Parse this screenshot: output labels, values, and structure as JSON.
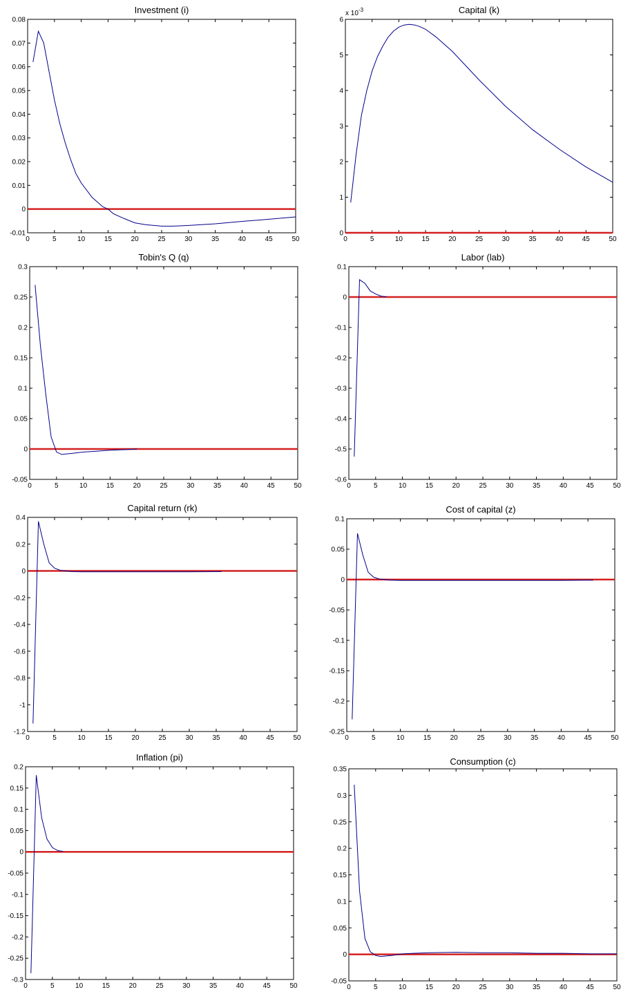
{
  "colors": {
    "series": "#00008b",
    "reference": "#d42020",
    "axes": "#000000",
    "background": "#ffffff"
  },
  "chart_data": [
    {
      "type": "line",
      "title": "Investment (i)",
      "xlim": [
        0,
        50
      ],
      "ylim": [
        -0.01,
        0.08
      ],
      "xticks": [
        "0",
        "5",
        "10",
        "15",
        "20",
        "25",
        "30",
        "35",
        "40",
        "45",
        "50"
      ],
      "yticks": [
        "-0.01",
        "0",
        "0.01",
        "0.02",
        "0.03",
        "0.04",
        "0.05",
        "0.06",
        "0.07",
        "0.08"
      ],
      "series": [
        {
          "x": [
            1,
            2,
            3,
            4,
            5,
            6,
            7,
            8,
            9,
            10,
            12,
            14,
            15,
            16,
            18,
            20,
            22,
            25,
            27,
            30,
            35,
            40,
            45,
            50
          ],
          "y": [
            0.062,
            0.075,
            0.07,
            0.058,
            0.046,
            0.036,
            0.028,
            0.021,
            0.015,
            0.011,
            0.005,
            0.001,
            0.0,
            -0.002,
            -0.004,
            -0.0058,
            -0.0066,
            -0.0072,
            -0.0072,
            -0.0069,
            -0.0062,
            -0.0052,
            -0.0043,
            -0.0033
          ]
        }
      ],
      "reference_line": 0
    },
    {
      "type": "line",
      "title": "Capital (k)",
      "scale_label": "x 10",
      "scale_exponent": "-3",
      "xlim": [
        0,
        50
      ],
      "ylim": [
        0,
        6
      ],
      "xticks": [
        "0",
        "5",
        "10",
        "15",
        "20",
        "25",
        "30",
        "35",
        "40",
        "45",
        "50"
      ],
      "yticks": [
        "0",
        "1",
        "2",
        "3",
        "4",
        "5",
        "6"
      ],
      "series": [
        {
          "x": [
            1,
            2,
            3,
            4,
            5,
            6,
            7,
            8,
            9,
            10,
            11,
            12,
            13,
            14,
            15,
            17,
            20,
            25,
            30,
            35,
            40,
            45,
            50
          ],
          "y": [
            0.85,
            2.2,
            3.3,
            4.0,
            4.55,
            4.95,
            5.25,
            5.5,
            5.67,
            5.78,
            5.84,
            5.86,
            5.84,
            5.79,
            5.72,
            5.5,
            5.1,
            4.3,
            3.55,
            2.9,
            2.35,
            1.85,
            1.42
          ]
        }
      ],
      "reference_line": 0
    },
    {
      "type": "line",
      "title": "Tobin's Q (q)",
      "xlim": [
        0,
        50
      ],
      "ylim": [
        -0.05,
        0.3
      ],
      "xticks": [
        "0",
        "5",
        "10",
        "15",
        "20",
        "25",
        "30",
        "35",
        "40",
        "45",
        "50"
      ],
      "yticks": [
        "-0.05",
        "0",
        "0.05",
        "0.1",
        "0.15",
        "0.2",
        "0.25",
        "0.3"
      ],
      "series": [
        {
          "x": [
            1,
            2,
            3,
            4,
            5,
            6,
            7,
            8,
            10,
            12,
            15,
            18,
            20
          ],
          "y": [
            0.27,
            0.17,
            0.09,
            0.02,
            -0.005,
            -0.009,
            -0.008,
            -0.007,
            -0.005,
            -0.004,
            -0.002,
            -0.001,
            0.0
          ]
        }
      ],
      "reference_line": 0
    },
    {
      "type": "line",
      "title": "Labor (lab)",
      "xlim": [
        0,
        50
      ],
      "ylim": [
        -0.6,
        0.1
      ],
      "xticks": [
        "0",
        "5",
        "10",
        "15",
        "20",
        "25",
        "30",
        "35",
        "40",
        "45",
        "50"
      ],
      "yticks": [
        "-0.6",
        "-0.5",
        "-0.4",
        "-0.3",
        "-0.2",
        "-0.1",
        "0",
        "0.1"
      ],
      "series": [
        {
          "x": [
            1,
            2,
            3,
            4,
            5,
            6,
            7
          ],
          "y": [
            -0.525,
            0.057,
            0.045,
            0.02,
            0.01,
            0.003,
            0.001
          ]
        }
      ],
      "reference_line": 0
    },
    {
      "type": "line",
      "title": "Capital return (rk)",
      "xlim": [
        0,
        50
      ],
      "ylim": [
        -1.2,
        0.4
      ],
      "xticks": [
        "0",
        "5",
        "10",
        "15",
        "20",
        "25",
        "30",
        "35",
        "40",
        "45",
        "50"
      ],
      "yticks": [
        "-1.2",
        "-1",
        "-0.8",
        "-0.6",
        "-0.4",
        "-0.2",
        "0",
        "0.2",
        "0.4"
      ],
      "series": [
        {
          "x": [
            1,
            2,
            3,
            4,
            5,
            6,
            8,
            10,
            15,
            20,
            25,
            30,
            36
          ],
          "y": [
            -1.14,
            0.37,
            0.2,
            0.06,
            0.02,
            0.005,
            -0.005,
            -0.006,
            -0.006,
            -0.006,
            -0.006,
            -0.006,
            -0.005
          ]
        }
      ],
      "reference_line": 0
    },
    {
      "type": "line",
      "title": "Cost of capital (z)",
      "xlim": [
        0,
        50
      ],
      "ylim": [
        -0.25,
        0.1
      ],
      "xticks": [
        "0",
        "5",
        "10",
        "15",
        "20",
        "25",
        "30",
        "35",
        "40",
        "45",
        "50"
      ],
      "yticks": [
        "-0.25",
        "-0.2",
        "-0.15",
        "-0.1",
        "-0.05",
        "0",
        "0.05",
        "0.1"
      ],
      "series": [
        {
          "x": [
            1,
            2,
            3,
            4,
            5,
            6,
            8,
            10,
            15,
            20,
            25,
            30,
            35,
            40,
            46
          ],
          "y": [
            -0.23,
            0.076,
            0.04,
            0.012,
            0.004,
            0.001,
            -0.001,
            -0.0015,
            -0.0015,
            -0.0015,
            -0.0015,
            -0.0015,
            -0.0015,
            -0.0015,
            -0.001
          ]
        }
      ],
      "reference_line": 0
    },
    {
      "type": "line",
      "title": "Inflation (pi)",
      "xlim": [
        0,
        50
      ],
      "ylim": [
        -0.3,
        0.2
      ],
      "xticks": [
        "0",
        "5",
        "10",
        "15",
        "20",
        "25",
        "30",
        "35",
        "40",
        "45",
        "50"
      ],
      "yticks": [
        "-0.3",
        "-0.25",
        "-0.2",
        "-0.15",
        "-0.1",
        "-0.05",
        "0",
        "0.05",
        "0.1",
        "0.15",
        "0.2"
      ],
      "series": [
        {
          "x": [
            1,
            2,
            3,
            4,
            5,
            6,
            7
          ],
          "y": [
            -0.285,
            0.18,
            0.08,
            0.03,
            0.01,
            0.003,
            0.001
          ]
        }
      ],
      "reference_line": 0
    },
    {
      "type": "line",
      "title": "Consumption (c)",
      "xlim": [
        0,
        50
      ],
      "ylim": [
        -0.05,
        0.35
      ],
      "xticks": [
        "0",
        "5",
        "10",
        "15",
        "20",
        "25",
        "30",
        "35",
        "40",
        "45",
        "50"
      ],
      "yticks": [
        "-0.05",
        "0",
        "0.05",
        "0.1",
        "0.15",
        "0.2",
        "0.25",
        "0.3",
        "0.35"
      ],
      "series": [
        {
          "x": [
            1,
            2,
            3,
            4,
            5,
            6,
            7,
            8,
            10,
            12,
            15,
            20,
            25,
            30,
            35,
            40,
            45,
            50
          ],
          "y": [
            0.32,
            0.12,
            0.03,
            0.005,
            -0.002,
            -0.004,
            -0.003,
            -0.002,
            0.001,
            0.002,
            0.003,
            0.004,
            0.003,
            0.003,
            0.002,
            0.002,
            0.001,
            0.001
          ]
        }
      ],
      "reference_line": 0
    }
  ]
}
